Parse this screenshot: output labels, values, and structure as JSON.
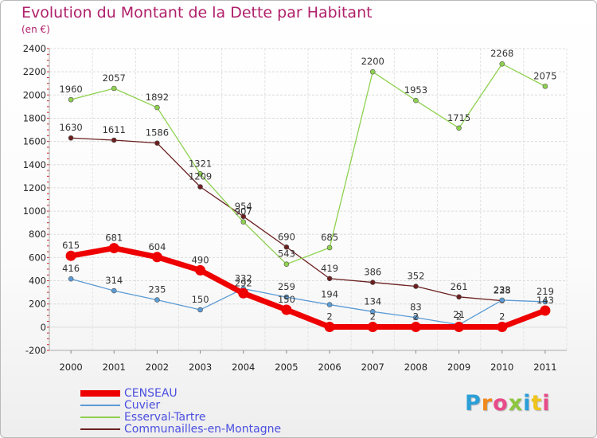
{
  "title": "Evolution du Montant de la Dette par Habitant",
  "subtitle": "(en €)",
  "logo_text": "Proxiti",
  "chart_data": {
    "type": "line",
    "categories": [
      "2000",
      "2001",
      "2002",
      "2003",
      "2004",
      "2005",
      "2006",
      "2007",
      "2008",
      "2009",
      "2010",
      "2011"
    ],
    "ylim": [
      -200,
      2400
    ],
    "yticks": [
      -200,
      0,
      200,
      400,
      600,
      800,
      1000,
      1200,
      1400,
      1600,
      1800,
      2000,
      2200,
      2400
    ],
    "grid": true,
    "legend_position": "bottom-left",
    "series": [
      {
        "name": "CENSEAU",
        "color": "#ee0000",
        "values": [
          615,
          681,
          604,
          490,
          292,
          150,
          2,
          2,
          2,
          2,
          2,
          143
        ]
      },
      {
        "name": "Cuvier",
        "color": "#5b9bd5",
        "values": [
          416,
          314,
          235,
          150,
          332,
          259,
          194,
          134,
          83,
          21,
          233,
          219
        ]
      },
      {
        "name": "Esserval-Tartre",
        "color": "#8fd14f",
        "values": [
          1960,
          2057,
          1892,
          1321,
          907,
          543,
          685,
          2200,
          1953,
          1715,
          2268,
          2075
        ]
      },
      {
        "name": "Communailles-en-Montagne",
        "color": "#6b1f1f",
        "values": [
          1630,
          1611,
          1586,
          1209,
          954,
          690,
          419,
          386,
          352,
          261,
          228,
          null
        ]
      }
    ]
  }
}
